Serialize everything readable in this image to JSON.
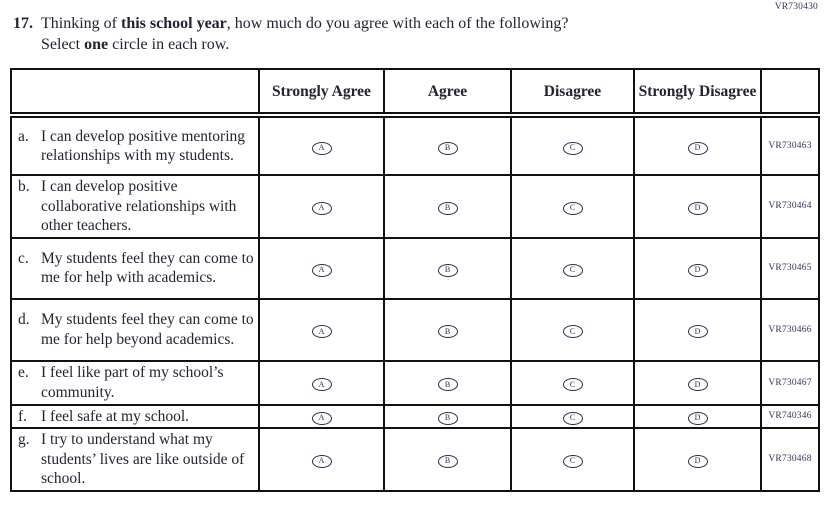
{
  "page": {
    "top_code": "VR730430"
  },
  "question": {
    "number": "17.",
    "line1_pre": "Thinking of ",
    "line1_bold": "this school year",
    "line1_post": ", how much do you agree with each of the following?",
    "line2_pre": "Select ",
    "line2_bold": "one",
    "line2_post": " circle in each row."
  },
  "table": {
    "headers": [
      "Strongly Agree",
      "Agree",
      "Disagree",
      "Strongly Disagree"
    ],
    "bubble_letters": [
      "A",
      "B",
      "C",
      "D"
    ],
    "rows": [
      {
        "prefix": "a.",
        "text": "I can develop positive mentoring relationships with my students.",
        "code": "VR730463"
      },
      {
        "prefix": "b.",
        "text": "I can develop positive collaborative relationships with other teachers.",
        "code": "VR730464"
      },
      {
        "prefix": "c.",
        "text": "My students feel they can come to me for help with academics.",
        "code": "VR730465"
      },
      {
        "prefix": "d.",
        "text": "My students feel they can come to me for help beyond academics.",
        "code": "VR730466"
      },
      {
        "prefix": "e.",
        "text": "I feel like part of my school’s community.",
        "code": "VR730467"
      },
      {
        "prefix": "f.",
        "text": "I feel safe at my school.",
        "code": "VR740346"
      },
      {
        "prefix": "g.",
        "text": "I try to understand what my students’ lives are like outside of school.",
        "code": "VR730468"
      }
    ]
  },
  "colors": {
    "text": "#232334",
    "border": "#111111",
    "code": "#333366",
    "bubble": "#2b2b55",
    "bg": "#ffffff"
  }
}
